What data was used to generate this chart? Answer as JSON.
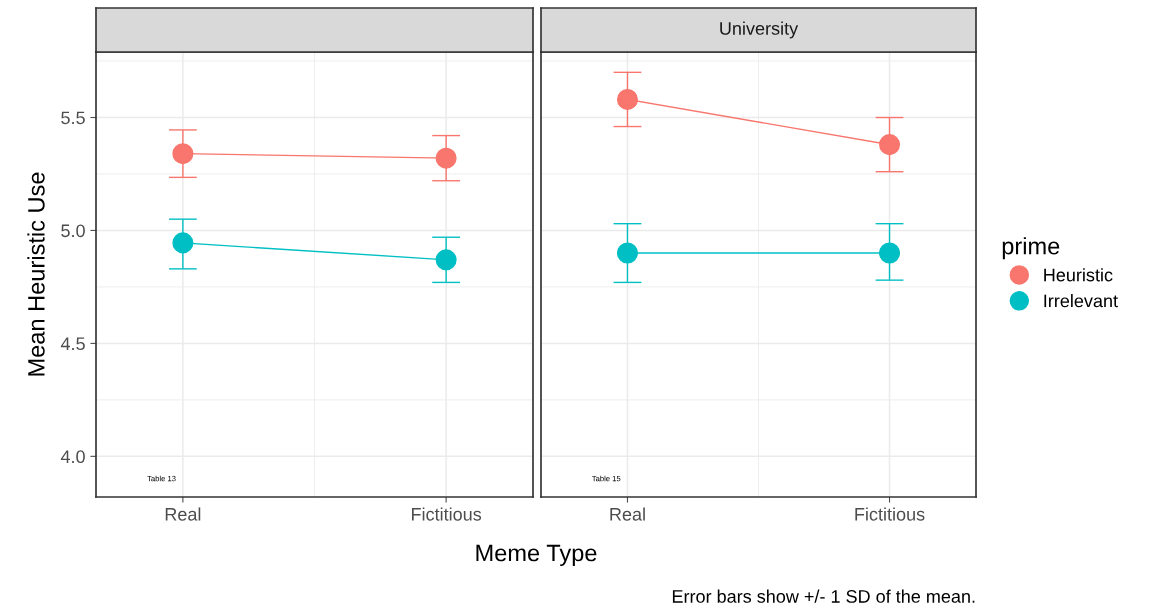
{
  "chart_data": [
    {
      "type": "line",
      "categories": [
        "Real",
        "Fictitious"
      ],
      "xlabel": "Meme Type",
      "ylabel": "Mean Heuristic Use",
      "ylim": [
        3.82,
        5.79
      ],
      "yticks": [
        {
          "value": 4.0,
          "label": "4.0"
        },
        {
          "value": 4.5,
          "label": "4.5"
        },
        {
          "value": 5.0,
          "label": "5.0"
        },
        {
          "value": 5.5,
          "label": "5.5"
        }
      ],
      "grid": true,
      "marker": "circle",
      "line_style": "solid",
      "legend": "right",
      "legend_title": "prime",
      "series": [
        {
          "name": "Heuristic",
          "color": "#f8766d",
          "values": [
            5.34,
            5.32
          ],
          "errors": [
            [
              5.235,
              5.445
            ],
            [
              5.22,
              5.42
            ]
          ]
        },
        {
          "name": "Irrelevant",
          "color": "#00bfc4",
          "values": [
            4.945,
            4.87
          ],
          "errors": [
            [
              4.83,
              5.05
            ],
            [
              4.77,
              4.97
            ]
          ]
        }
      ],
      "annotations": [
        "Table 13"
      ]
    },
    {
      "type": "line",
      "title": "University",
      "categories": [
        "Real",
        "Fictitious"
      ],
      "ylim": [
        3.82,
        5.79
      ],
      "yticks": [
        4.0,
        4.5,
        5.0,
        5.5
      ],
      "tick_labels": "x",
      "grid": true,
      "marker": "circle",
      "line_style": "solid",
      "series": [
        {
          "color": "#f8766d",
          "values": [
            5.58,
            5.38
          ],
          "errors": [
            [
              5.46,
              5.7
            ],
            [
              5.26,
              5.5
            ]
          ]
        },
        {
          "color": "#00bfc4",
          "values": [
            4.9,
            4.9
          ],
          "errors": [
            [
              4.77,
              5.03
            ],
            [
              4.78,
              5.03
            ]
          ]
        }
      ],
      "annotations": [
        "Table 15",
        "Error bars show +/- 1 SD of the mean."
      ]
    }
  ]
}
